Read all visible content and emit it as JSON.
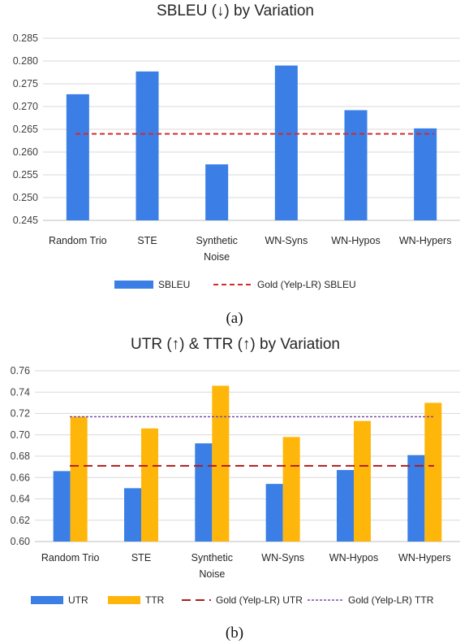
{
  "chart_data": [
    {
      "type": "bar",
      "title": "SBLEU (↓) by Variation",
      "categories": [
        [
          "Random Trio"
        ],
        [
          "STE"
        ],
        [
          "Synthetic",
          "Noise"
        ],
        [
          "WN-Syns"
        ],
        [
          "WN-Hypos"
        ],
        [
          "WN-Hypers"
        ]
      ],
      "yticks": [
        "0.245",
        "0.250",
        "0.255",
        "0.260",
        "0.265",
        "0.270",
        "0.275",
        "0.280",
        "0.285"
      ],
      "ylim": [
        0.245,
        0.285
      ],
      "series": [
        {
          "name": "SBLEU",
          "color": "#3a7ee6",
          "values": [
            0.2727,
            0.2777,
            0.2573,
            0.279,
            0.2692,
            0.2652
          ]
        }
      ],
      "reference_lines": [
        {
          "name": "Gold (Yelp-LR) SBLEU",
          "value": 0.264,
          "color": "#d42a2a",
          "style": "dashed"
        }
      ],
      "grid": true,
      "legend_position": "bottom",
      "caption": "(a)"
    },
    {
      "type": "bar",
      "title": "UTR (↑) & TTR (↑) by Variation",
      "categories": [
        [
          "Random Trio"
        ],
        [
          "STE"
        ],
        [
          "Synthetic",
          "Noise"
        ],
        [
          "WN-Syns"
        ],
        [
          "WN-Hypos"
        ],
        [
          "WN-Hypers"
        ]
      ],
      "yticks": [
        "0.60",
        "0.62",
        "0.64",
        "0.66",
        "0.68",
        "0.70",
        "0.72",
        "0.74",
        "0.76"
      ],
      "ylim": [
        0.6,
        0.76
      ],
      "series": [
        {
          "name": "UTR",
          "color": "#3a7ee6",
          "values": [
            0.666,
            0.65,
            0.692,
            0.654,
            0.667,
            0.681
          ]
        },
        {
          "name": "TTR",
          "color": "#ffb60a",
          "values": [
            0.717,
            0.706,
            0.746,
            0.698,
            0.713,
            0.73
          ]
        }
      ],
      "reference_lines": [
        {
          "name": "Gold (Yelp-LR) UTR",
          "value": 0.671,
          "color": "#b01c1c",
          "style": "long-dash"
        },
        {
          "name": "Gold (Yelp-LR) TTR",
          "value": 0.717,
          "color": "#7a4aa8",
          "style": "dotted"
        }
      ],
      "grid": true,
      "legend_position": "bottom",
      "caption": "(b)"
    }
  ]
}
